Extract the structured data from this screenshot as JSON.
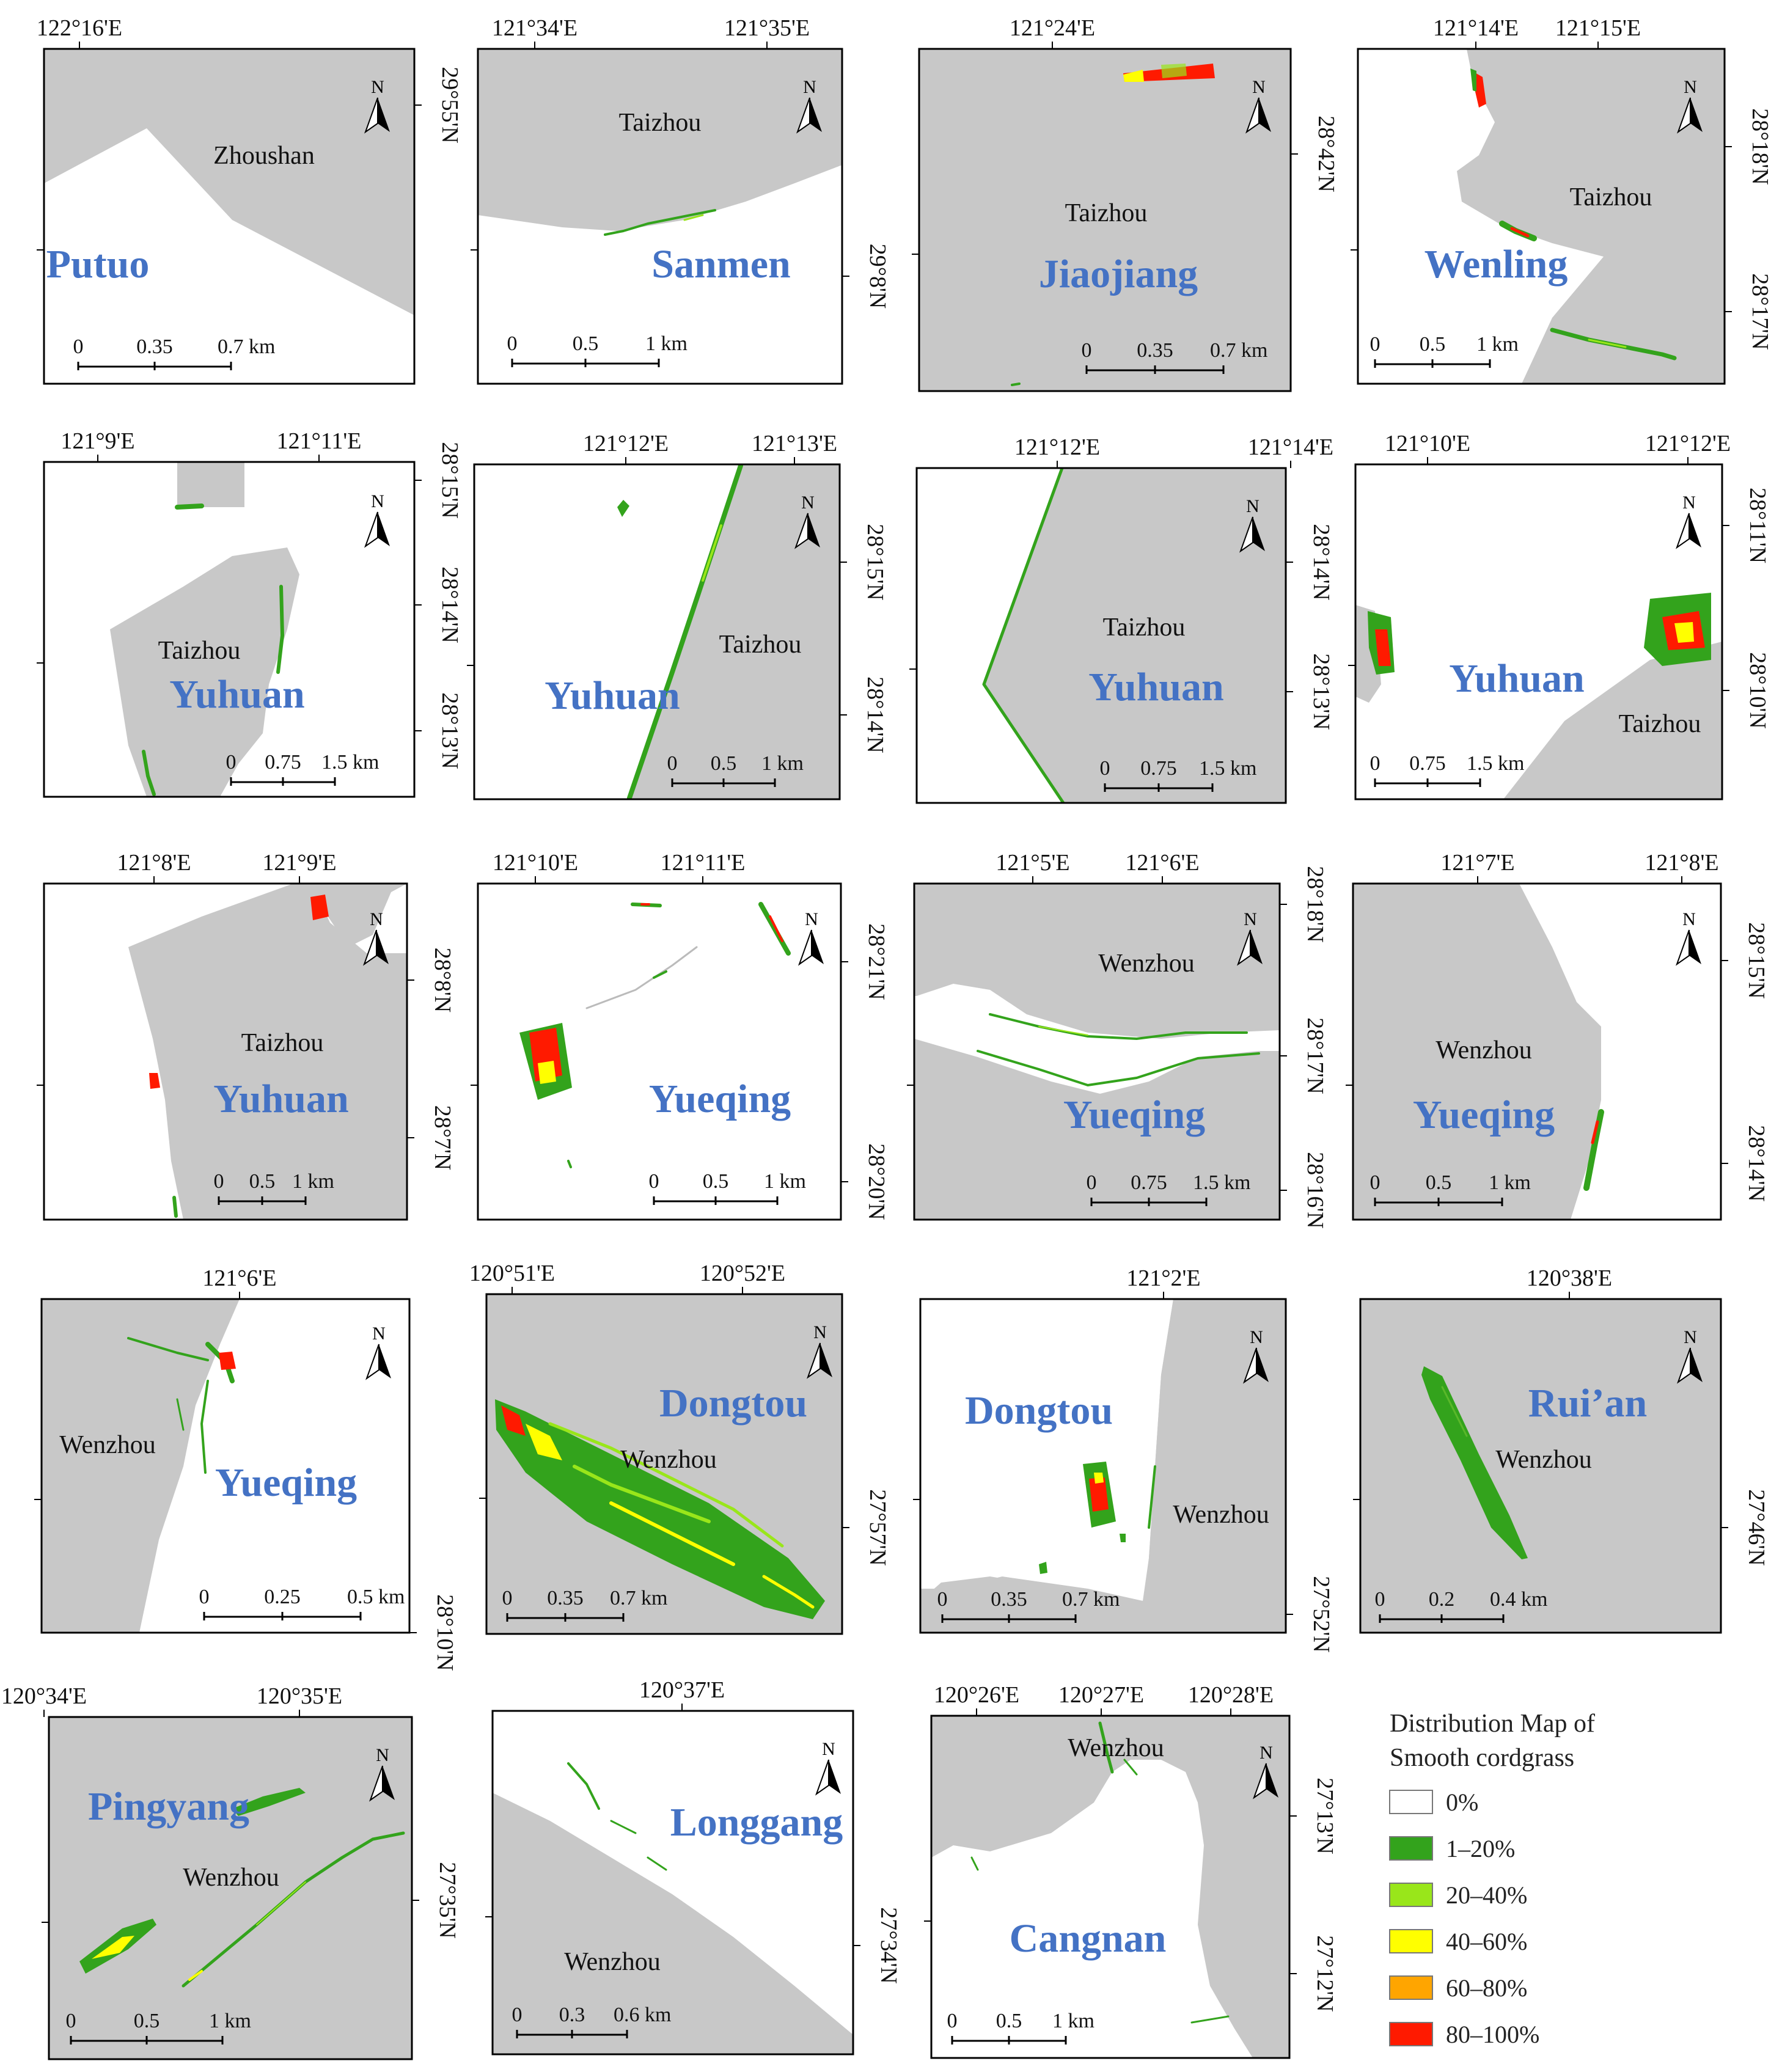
{
  "colors": {
    "land": "#c8c8c8",
    "water": "#ffffff",
    "place_label": "#4472c4",
    "frame": "#000000",
    "c0": "#ffffff",
    "c1": "#33a31c",
    "c2": "#99e61a",
    "c3": "#ffff00",
    "c4": "#ffa500",
    "c5": "#ff1a00"
  },
  "icons": {
    "north_arrow": "north-arrow-icon"
  },
  "legend": {
    "title_line1": "Distribution Map of",
    "title_line2": "Smooth cordgrass",
    "entries": [
      {
        "label": "0%",
        "color": "#ffffff"
      },
      {
        "label": "1–20%",
        "color": "#33a31c"
      },
      {
        "label": "20–40%",
        "color": "#99e61a"
      },
      {
        "label": "40–60%",
        "color": "#ffff00"
      },
      {
        "label": "60–80%",
        "color": "#ffa500"
      },
      {
        "label": "80–100%",
        "color": "#ff1a00"
      }
    ]
  },
  "maps": [
    {
      "id": "putuo",
      "place": "Putuo",
      "city": "Zhoushan",
      "north": "N",
      "top_ticks": [
        "122°16'E"
      ],
      "right_ticks": [
        "29°55'N"
      ],
      "scale": [
        "0",
        "0.35",
        "0.7 km"
      ]
    },
    {
      "id": "sanmen",
      "place": "Sanmen",
      "city": "Taizhou",
      "north": "N",
      "top_ticks": [
        "121°34'E",
        "121°35'E"
      ],
      "right_ticks": [
        "29°8'N"
      ],
      "scale": [
        "0",
        "0.5",
        "1 km"
      ]
    },
    {
      "id": "jiaojiang",
      "place": "Jiaojiang",
      "city": "Taizhou",
      "north": "N",
      "top_ticks": [
        "121°24'E"
      ],
      "right_ticks": [
        "28°42'N"
      ],
      "scale": [
        "0",
        "0.35",
        "0.7 km"
      ]
    },
    {
      "id": "wenling",
      "place": "Wenling",
      "city": "Taizhou",
      "north": "N",
      "top_ticks": [
        "121°14'E",
        "121°15'E"
      ],
      "right_ticks": [
        "28°18'N",
        "28°17'N"
      ],
      "scale": [
        "0",
        "0.5",
        "1 km"
      ]
    },
    {
      "id": "yuhuan1",
      "place": "Yuhuan",
      "city": "Taizhou",
      "north": "N",
      "top_ticks": [
        "121°9'E",
        "121°11'E"
      ],
      "right_ticks": [
        "28°15'N",
        "28°14'N",
        "28°13'N"
      ],
      "scale": [
        "0",
        "0.75",
        "1.5 km"
      ]
    },
    {
      "id": "yuhuan2",
      "place": "Yuhuan",
      "city": "Taizhou",
      "north": "N",
      "top_ticks": [
        "121°12'E",
        "121°13'E"
      ],
      "right_ticks": [
        "28°15'N",
        "28°14'N"
      ],
      "scale": [
        "0",
        "0.5",
        "1 km"
      ]
    },
    {
      "id": "yuhuan3",
      "place": "Yuhuan",
      "city": "Taizhou",
      "north": "N",
      "top_ticks": [
        "121°12'E",
        "121°14'E"
      ],
      "right_ticks": [
        "28°14'N",
        "28°13'N"
      ],
      "scale": [
        "0",
        "0.75",
        "1.5 km"
      ]
    },
    {
      "id": "yuhuan4",
      "place": "Yuhuan",
      "city": "Taizhou",
      "north": "N",
      "top_ticks": [
        "121°10'E",
        "121°12'E"
      ],
      "right_ticks": [
        "28°11'N",
        "28°10'N"
      ],
      "scale": [
        "0",
        "0.75",
        "1.5 km"
      ]
    },
    {
      "id": "yuhuan5",
      "place": "Yuhuan",
      "city": "Taizhou",
      "north": "N",
      "top_ticks": [
        "121°8'E",
        "121°9'E"
      ],
      "right_ticks": [
        "28°8'N",
        "28°7'N"
      ],
      "scale": [
        "0",
        "0.5",
        "1 km"
      ]
    },
    {
      "id": "yueqing1",
      "place": "Yueqing",
      "city": "",
      "north": "N",
      "top_ticks": [
        "121°10'E",
        "121°11'E"
      ],
      "right_ticks": [
        "28°21'N",
        "28°20'N"
      ],
      "scale": [
        "0",
        "0.5",
        "1 km"
      ]
    },
    {
      "id": "yueqing2",
      "place": "Yueqing",
      "city": "Wenzhou",
      "north": "N",
      "top_ticks": [
        "121°5'E",
        "121°6'E"
      ],
      "right_ticks": [
        "28°18'N",
        "28°17'N",
        "28°16'N"
      ],
      "scale": [
        "0",
        "0.75",
        "1.5 km"
      ]
    },
    {
      "id": "yueqing3",
      "place": "Yueqing",
      "city": "Wenzhou",
      "north": "N",
      "top_ticks": [
        "121°7'E",
        "121°8'E"
      ],
      "right_ticks": [
        "28°15'N",
        "28°14'N"
      ],
      "scale": [
        "0",
        "0.5",
        "1 km"
      ]
    },
    {
      "id": "yueqing4",
      "place": "Yueqing",
      "city": "Wenzhou",
      "north": "N",
      "top_ticks": [
        "121°6'E"
      ],
      "right_ticks": [
        "28°10'N"
      ],
      "scale": [
        "0",
        "0.25",
        "0.5 km"
      ]
    },
    {
      "id": "dongtou1",
      "place": "Dongtou",
      "city": "Wenzhou",
      "north": "N",
      "top_ticks": [
        "120°51'E",
        "120°52'E"
      ],
      "right_ticks": [
        "27°57'N"
      ],
      "scale": [
        "0",
        "0.35",
        "0.7 km"
      ]
    },
    {
      "id": "dongtou2",
      "place": "Dongtou",
      "city": "Wenzhou",
      "north": "N",
      "top_ticks": [
        "121°2'E"
      ],
      "right_ticks": [
        "27°52'N"
      ],
      "scale": [
        "0",
        "0.35",
        "0.7 km"
      ]
    },
    {
      "id": "ruian",
      "place": "Rui’an",
      "city": "Wenzhou",
      "north": "N",
      "top_ticks": [
        "120°38'E"
      ],
      "right_ticks": [
        "27°46'N"
      ],
      "scale": [
        "0",
        "0.2",
        "0.4 km"
      ]
    },
    {
      "id": "pingyang",
      "place": "Pingyang",
      "city": "Wenzhou",
      "north": "N",
      "top_ticks": [
        "120°34'E",
        "120°35'E"
      ],
      "right_ticks": [
        "27°35'N"
      ],
      "scale": [
        "0",
        "0.5",
        "1 km"
      ]
    },
    {
      "id": "longgang",
      "place": "Longgang",
      "city": "Wenzhou",
      "north": "N",
      "top_ticks": [
        "120°37'E"
      ],
      "right_ticks": [
        "27°34'N"
      ],
      "scale": [
        "0",
        "0.3",
        "0.6 km"
      ]
    },
    {
      "id": "cangnan",
      "place": "Cangnan",
      "city": "Wenzhou",
      "north": "N",
      "top_ticks": [
        "120°26'E",
        "120°27'E",
        "120°28'E"
      ],
      "right_ticks": [
        "27°13'N",
        "27°12'N"
      ],
      "scale": [
        "0",
        "0.5",
        "1 km"
      ]
    }
  ]
}
